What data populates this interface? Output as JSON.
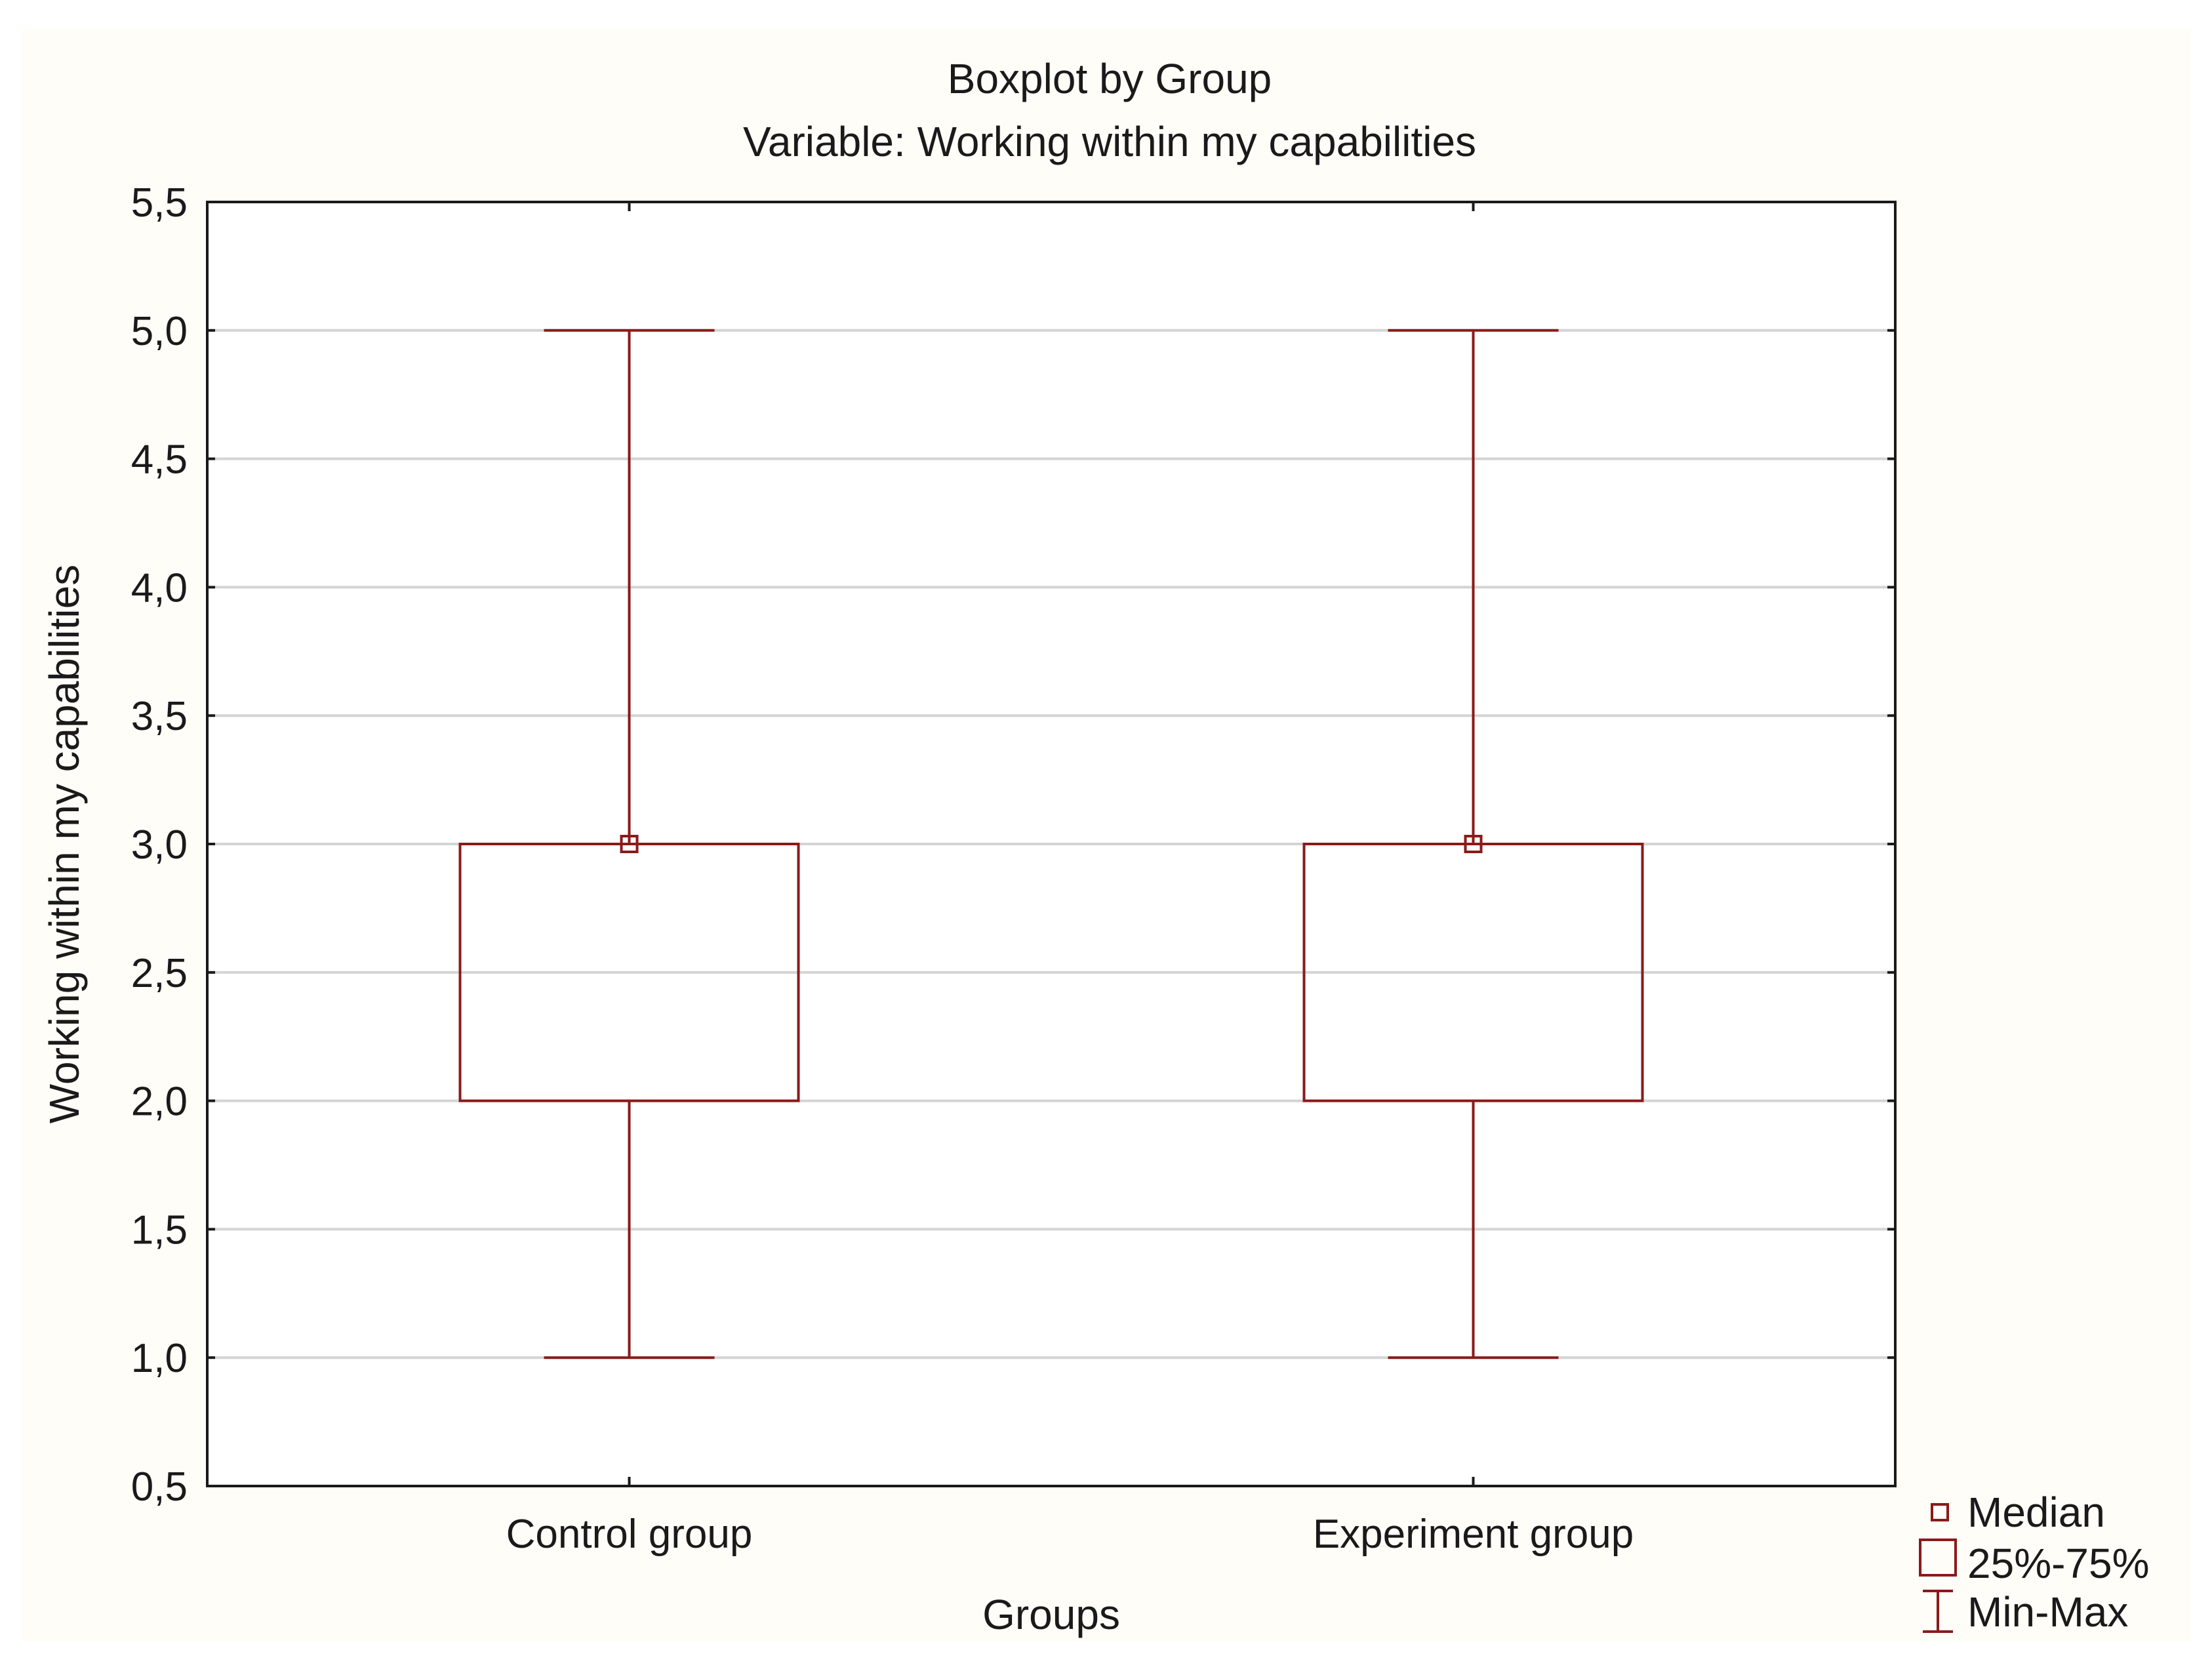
{
  "chart_data": {
    "type": "boxplot",
    "title": "Boxplot by Group",
    "subtitle": "Variable: Working within my capabilities",
    "xlabel": "Groups",
    "ylabel": "Working within my capabilities",
    "ylim": [
      0.5,
      5.5
    ],
    "ytick_step": 0.5,
    "ytick_labels": [
      "0,5",
      "1,0",
      "1,5",
      "2,0",
      "2,5",
      "3,0",
      "3,5",
      "4,0",
      "4,5",
      "5,0",
      "5,5"
    ],
    "grid": true,
    "categories": [
      "Control group",
      "Experiment group"
    ],
    "boxes": [
      {
        "name": "Control group",
        "min": 1.0,
        "q1": 2.0,
        "median": 3.0,
        "q3": 3.0,
        "max": 5.0
      },
      {
        "name": "Experiment group",
        "min": 1.0,
        "q1": 2.0,
        "median": 3.0,
        "q3": 3.0,
        "max": 5.0
      }
    ],
    "legend": {
      "position": "bottom-right",
      "entries": [
        {
          "symbol": "median-square",
          "label": "Median"
        },
        {
          "symbol": "box",
          "label": "25%-75%"
        },
        {
          "symbol": "whisker",
          "label": "Min-Max"
        }
      ]
    },
    "colors": {
      "box": "#8b1a1a",
      "grid": "#d4d4d4",
      "axis": "#1a1a1a",
      "background": "#fffdf8",
      "plot_background": "#ffffff"
    }
  }
}
